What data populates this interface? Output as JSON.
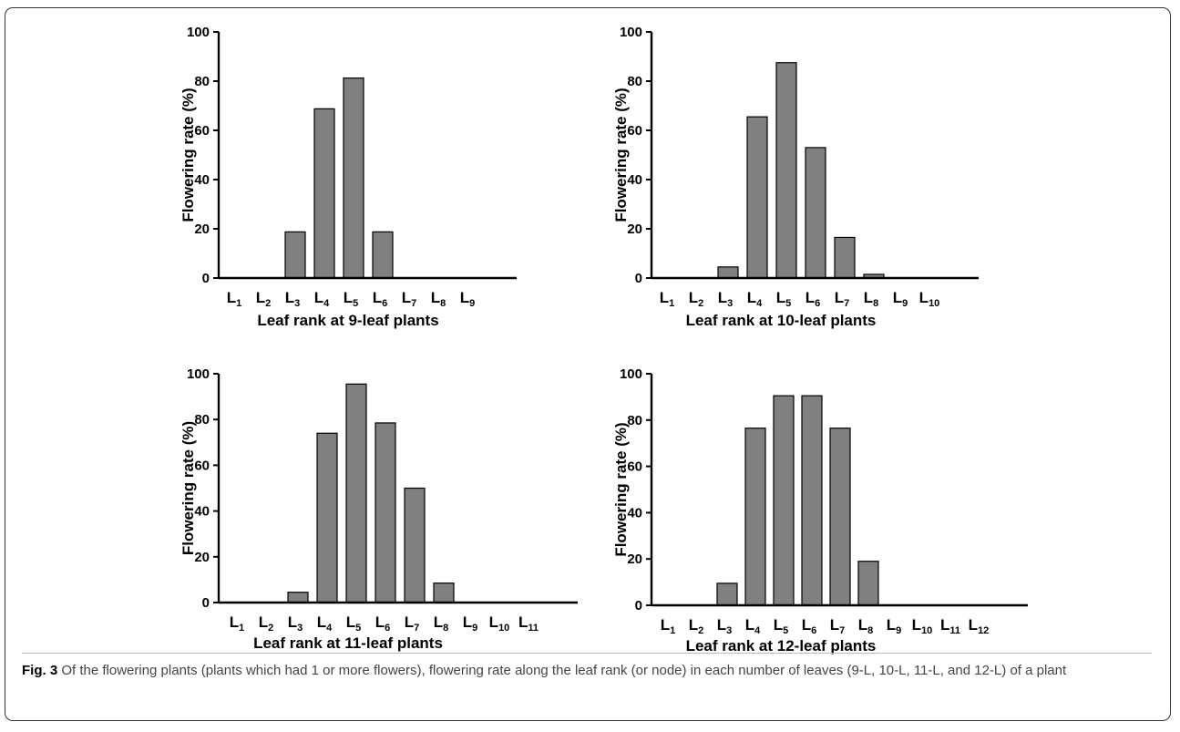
{
  "chart_data": [
    {
      "type": "bar",
      "categories": [
        "L1",
        "L2",
        "L3",
        "L4",
        "L5",
        "L6",
        "L7",
        "L8",
        "L9"
      ],
      "category_labels": [
        {
          "main": "L",
          "sub": "1"
        },
        {
          "main": "L",
          "sub": "2"
        },
        {
          "main": "L",
          "sub": "3"
        },
        {
          "main": "L",
          "sub": "4"
        },
        {
          "main": "L",
          "sub": "5"
        },
        {
          "main": "L",
          "sub": "6"
        },
        {
          "main": "L",
          "sub": "7"
        },
        {
          "main": "L",
          "sub": "8"
        },
        {
          "main": "L",
          "sub": "9"
        }
      ],
      "values": [
        0,
        0,
        18.75,
        68.75,
        81.25,
        18.75,
        0,
        0,
        0
      ],
      "xlabel": "Leaf rank at 9-leaf plants",
      "ylabel": "Flowering rate (%)",
      "ylim": [
        0,
        100
      ],
      "yticks": [
        "0",
        "20",
        "40",
        "60",
        "80",
        "100"
      ],
      "bar_color": "#808080",
      "grid": false
    },
    {
      "type": "bar",
      "categories": [
        "L1",
        "L2",
        "L3",
        "L4",
        "L5",
        "L6",
        "L7",
        "L8",
        "L9",
        "L10"
      ],
      "category_labels": [
        {
          "main": "L",
          "sub": "1"
        },
        {
          "main": "L",
          "sub": "2"
        },
        {
          "main": "L",
          "sub": "3"
        },
        {
          "main": "L",
          "sub": "4"
        },
        {
          "main": "L",
          "sub": "5"
        },
        {
          "main": "L",
          "sub": "6"
        },
        {
          "main": "L",
          "sub": "7"
        },
        {
          "main": "L",
          "sub": "8"
        },
        {
          "main": "L",
          "sub": "9"
        },
        {
          "main": "L",
          "sub": "10"
        }
      ],
      "values": [
        0,
        0,
        4.5,
        65.5,
        87.5,
        53,
        16.5,
        1.5,
        0,
        0
      ],
      "xlabel": "Leaf rank at 10-leaf plants",
      "ylabel": "Flowering rate (%)",
      "ylim": [
        0,
        100
      ],
      "yticks": [
        "0",
        "20",
        "40",
        "60",
        "80",
        "100"
      ],
      "bar_color": "#808080",
      "grid": false
    },
    {
      "type": "bar",
      "categories": [
        "L1",
        "L2",
        "L3",
        "L4",
        "L5",
        "L6",
        "L7",
        "L8",
        "L9",
        "L10",
        "L11"
      ],
      "category_labels": [
        {
          "main": "L",
          "sub": "1"
        },
        {
          "main": "L",
          "sub": "2"
        },
        {
          "main": "L",
          "sub": "3"
        },
        {
          "main": "L",
          "sub": "4"
        },
        {
          "main": "L",
          "sub": "5"
        },
        {
          "main": "L",
          "sub": "6"
        },
        {
          "main": "L",
          "sub": "7"
        },
        {
          "main": "L",
          "sub": "8"
        },
        {
          "main": "L",
          "sub": "9"
        },
        {
          "main": "L",
          "sub": "10"
        },
        {
          "main": "L",
          "sub": "11"
        }
      ],
      "values": [
        0,
        0,
        4.5,
        74,
        95.5,
        78.5,
        50,
        8.5,
        0,
        0,
        0
      ],
      "xlabel": "Leaf rank at 11-leaf plants",
      "ylabel": "Flowering rate (%)",
      "ylim": [
        0,
        100
      ],
      "yticks": [
        "0",
        "20",
        "40",
        "60",
        "80",
        "100"
      ],
      "bar_color": "#808080",
      "grid": false
    },
    {
      "type": "bar",
      "categories": [
        "L1",
        "L2",
        "L3",
        "L4",
        "L5",
        "L6",
        "L7",
        "L8",
        "L9",
        "L10",
        "L11",
        "L12"
      ],
      "category_labels": [
        {
          "main": "L",
          "sub": "1"
        },
        {
          "main": "L",
          "sub": "2"
        },
        {
          "main": "L",
          "sub": "3"
        },
        {
          "main": "L",
          "sub": "4"
        },
        {
          "main": "L",
          "sub": "5"
        },
        {
          "main": "L",
          "sub": "6"
        },
        {
          "main": "L",
          "sub": "7"
        },
        {
          "main": "L",
          "sub": "8"
        },
        {
          "main": "L",
          "sub": "9"
        },
        {
          "main": "L",
          "sub": "10"
        },
        {
          "main": "L",
          "sub": "11"
        },
        {
          "main": "L",
          "sub": "12"
        }
      ],
      "values": [
        0,
        0,
        9.5,
        76.5,
        90.5,
        90.5,
        76.5,
        19,
        0,
        0,
        0,
        0
      ],
      "xlabel": "Leaf rank at 12-leaf plants",
      "ylabel": "Flowering rate (%)",
      "ylim": [
        0,
        100
      ],
      "yticks": [
        "0",
        "20",
        "40",
        "60",
        "80",
        "100"
      ],
      "bar_color": "#808080",
      "grid": false
    }
  ],
  "caption": {
    "label": "Fig. 3",
    "text": " Of the flowering plants (plants which had 1 or more flowers), flowering rate along the leaf rank (or node) in each number of leaves (9-L, 10-L, 11-L, and 12-L) of a plant"
  }
}
